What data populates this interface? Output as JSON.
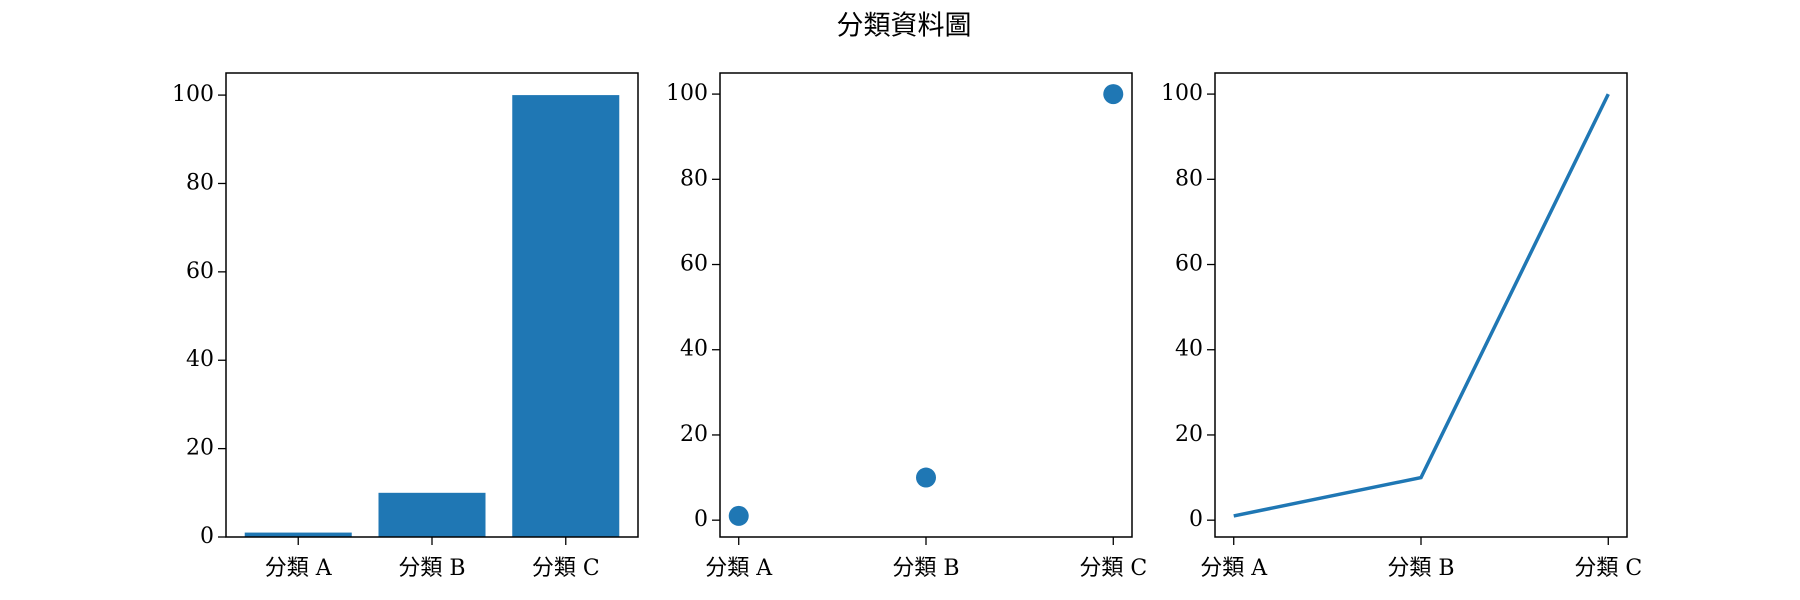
{
  "title": "分類資料圖",
  "chart_data": [
    {
      "type": "bar",
      "categories": [
        "分類 A",
        "分類 B",
        "分類 C"
      ],
      "values": [
        1,
        10,
        100
      ],
      "color": "#1f77b4",
      "ylim": [
        0,
        105
      ],
      "yticks": [
        0,
        20,
        40,
        60,
        80,
        100
      ]
    },
    {
      "type": "scatter",
      "categories": [
        "分類 A",
        "分類 B",
        "分類 C"
      ],
      "values": [
        1,
        10,
        100
      ],
      "color": "#1f77b4",
      "ylim": [
        -3.95,
        104.95
      ],
      "yticks": [
        0,
        20,
        40,
        60,
        80,
        100
      ]
    },
    {
      "type": "line",
      "categories": [
        "分類 A",
        "分類 B",
        "分類 C"
      ],
      "values": [
        1,
        10,
        100
      ],
      "color": "#1f77b4",
      "ylim": [
        -3.95,
        104.95
      ],
      "yticks": [
        0,
        20,
        40,
        60,
        80,
        100
      ]
    }
  ]
}
